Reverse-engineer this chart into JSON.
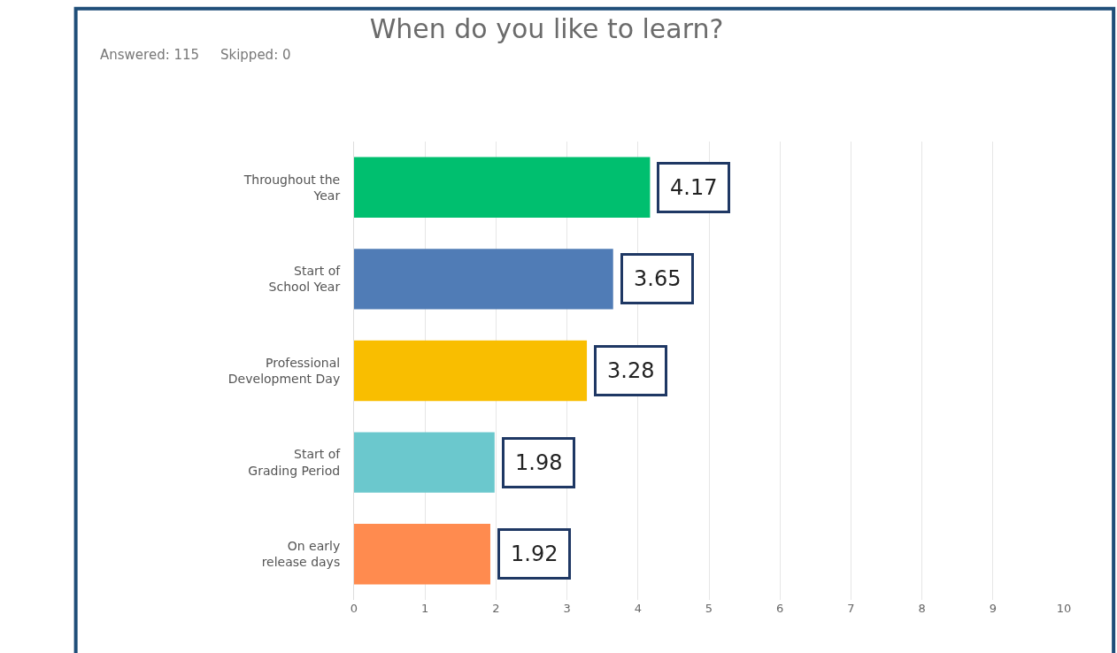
{
  "chart_data": {
    "type": "bar",
    "orientation": "horizontal",
    "title": "When do you like to learn?",
    "subtitle": "Answered: 115    Skipped: 0",
    "categories": [
      "Throughout the\nYear",
      "Start of\nSchool Year",
      "Professional\nDevelopment Day",
      "Start of\nGrading Period",
      "On early\nrelease days"
    ],
    "values": [
      4.17,
      3.65,
      3.28,
      1.98,
      1.92
    ],
    "colors": [
      "#00bf6f",
      "#507cb6",
      "#f9be00",
      "#6bc8cd",
      "#ff8b4f"
    ],
    "xlim": [
      0,
      10
    ],
    "xticks": [
      0,
      1,
      2,
      3,
      4,
      5,
      6,
      7,
      8,
      9,
      10
    ],
    "grid": "x",
    "data_labels": true
  }
}
